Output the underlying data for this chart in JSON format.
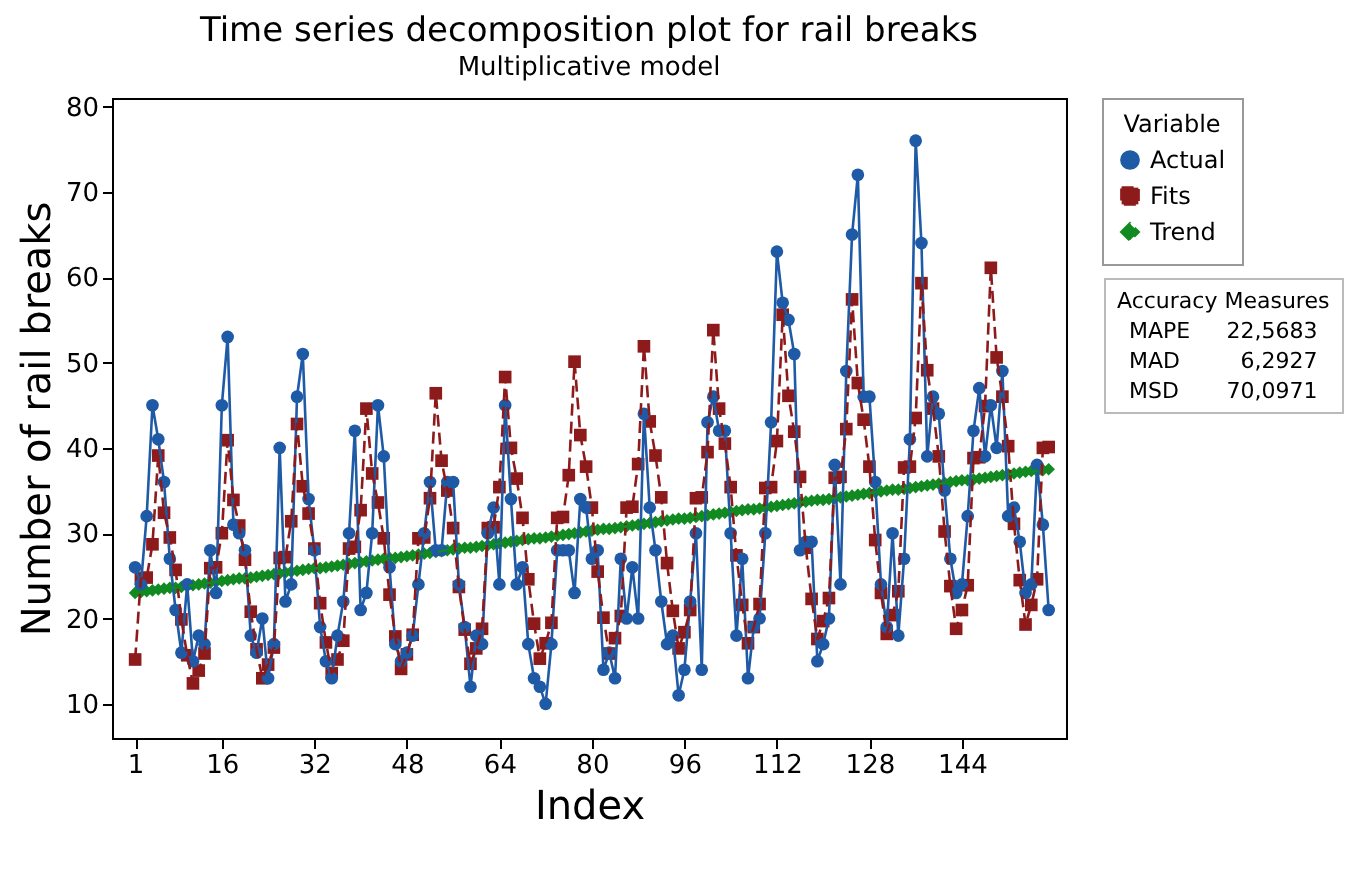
{
  "chart_data": {
    "type": "line",
    "title": "Time series decomposition plot for rail breaks",
    "subtitle": "Multiplicative model",
    "xlabel": "Index",
    "ylabel": "Number of rail breaks",
    "legend_title": "Variable",
    "legend": "right",
    "grid": false,
    "xlim": [
      -3,
      162
    ],
    "xticks": [
      1,
      16,
      32,
      48,
      64,
      80,
      96,
      112,
      128,
      144
    ],
    "ylim": [
      6,
      81
    ],
    "yticks": [
      10,
      20,
      30,
      40,
      50,
      60,
      70,
      80
    ],
    "x": [
      1,
      2,
      3,
      4,
      5,
      6,
      7,
      8,
      9,
      10,
      11,
      12,
      13,
      14,
      15,
      16,
      17,
      18,
      19,
      20,
      21,
      22,
      23,
      24,
      25,
      26,
      27,
      28,
      29,
      30,
      31,
      32,
      33,
      34,
      35,
      36,
      37,
      38,
      39,
      40,
      41,
      42,
      43,
      44,
      45,
      46,
      47,
      48,
      49,
      50,
      51,
      52,
      53,
      54,
      55,
      56,
      57,
      58,
      59,
      60,
      61,
      62,
      63,
      64,
      65,
      66,
      67,
      68,
      69,
      70,
      71,
      72,
      73,
      74,
      75,
      76,
      77,
      78,
      79,
      80,
      81,
      82,
      83,
      84,
      85,
      86,
      87,
      88,
      89,
      90,
      91,
      92,
      93,
      94,
      95,
      96,
      97,
      98,
      99,
      100,
      101,
      102,
      103,
      104,
      105,
      106,
      107,
      108,
      109,
      110,
      111,
      112,
      113,
      114,
      115,
      116,
      117,
      118,
      119,
      120,
      121,
      122,
      123,
      124,
      125,
      126,
      127,
      128,
      129,
      130,
      131,
      132,
      133,
      134,
      135,
      136,
      137,
      138,
      139,
      140,
      141,
      142,
      143,
      144,
      145,
      146,
      147,
      148,
      149,
      150,
      151,
      152,
      153,
      154,
      155,
      156,
      157,
      158,
      159
    ],
    "series": [
      {
        "name": "Actual",
        "color": "#1f5aa6",
        "marker": "circle",
        "line_style": "solid",
        "values": [
          26,
          24,
          32,
          45,
          41,
          36,
          27,
          21,
          16,
          24,
          15,
          18,
          17,
          28,
          23,
          45,
          53,
          31,
          30,
          28,
          18,
          16,
          20,
          13,
          17,
          40,
          22,
          24,
          46,
          51,
          34,
          28,
          19,
          15,
          13,
          18,
          22,
          30,
          42,
          21,
          23,
          30,
          45,
          39,
          26,
          17,
          15,
          16,
          18,
          24,
          30,
          36,
          28,
          28,
          36,
          36,
          24,
          19,
          12,
          18,
          17,
          30,
          33,
          24,
          45,
          34,
          24,
          26,
          17,
          13,
          12,
          10,
          17,
          28,
          28,
          28,
          23,
          34,
          33,
          27,
          28,
          14,
          16,
          13,
          27,
          20,
          26,
          20,
          44,
          33,
          28,
          22,
          17,
          18,
          11,
          14,
          22,
          30,
          14,
          43,
          46,
          42,
          42,
          30,
          18,
          27,
          13,
          19,
          20,
          30,
          43,
          63,
          57,
          55,
          51,
          28,
          29,
          29,
          15,
          17,
          20,
          38,
          24,
          49,
          65,
          72,
          46,
          46,
          36,
          24,
          19,
          30,
          18,
          27,
          41,
          76,
          64,
          39,
          46,
          44,
          35,
          27,
          23,
          24,
          32,
          42,
          47,
          39,
          45,
          40,
          49,
          32,
          33,
          29,
          23,
          24,
          38,
          31,
          21
        ]
      },
      {
        "name": "Fits",
        "color": "#8e1b1b",
        "marker": "square",
        "line_style": "dashed",
        "values": [
          15.2,
          24.7,
          24.8,
          28.7,
          39.1,
          32.4,
          29.5,
          25.7,
          19.9,
          15.7,
          12.4,
          13.9,
          15.9,
          25.9,
          26.0,
          30.0,
          40.9,
          33.9,
          30.9,
          26.9,
          20.8,
          16.4,
          13.0,
          14.6,
          16.6,
          27.1,
          27.2,
          31.4,
          42.8,
          35.5,
          32.3,
          28.2,
          21.8,
          17.2,
          13.6,
          15.2,
          17.4,
          28.2,
          28.4,
          32.7,
          44.6,
          37.0,
          33.6,
          29.4,
          22.8,
          17.9,
          14.1,
          15.8,
          18.1,
          29.4,
          29.5,
          34.1,
          46.4,
          38.5,
          35.0,
          30.6,
          23.7,
          18.7,
          14.7,
          16.5,
          18.8,
          30.6,
          30.7,
          35.4,
          48.3,
          40.0,
          36.4,
          31.8,
          24.6,
          19.4,
          15.3,
          17.1,
          19.5,
          31.8,
          31.9,
          36.8,
          50.1,
          41.5,
          37.8,
          33.0,
          25.5,
          20.1,
          15.9,
          17.7,
          20.3,
          33.0,
          33.1,
          38.1,
          51.9,
          43.1,
          39.1,
          34.2,
          26.5,
          20.9,
          16.5,
          18.4,
          21.0,
          34.1,
          34.2,
          39.5,
          53.8,
          44.6,
          40.5,
          35.4,
          27.4,
          21.6,
          17.1,
          19.0,
          21.7,
          35.3,
          35.4,
          40.8,
          55.6,
          46.1,
          41.9,
          36.6,
          28.3,
          22.3,
          17.6,
          19.7,
          22.4,
          36.5,
          36.6,
          42.2,
          57.4,
          47.6,
          43.3,
          37.8,
          29.2,
          23.0,
          18.2,
          20.4,
          23.2,
          37.7,
          37.8,
          43.5,
          59.3,
          49.1,
          44.6,
          39.0,
          30.2,
          23.8,
          18.8,
          21.0,
          23.9,
          38.8,
          38.9,
          44.9,
          61.1,
          50.6,
          46.0,
          40.2,
          31.1,
          24.5,
          19.3,
          21.6,
          24.6,
          40.0,
          40.1
        ]
      },
      {
        "name": "Trend",
        "color": "#128a22",
        "marker": "diamond",
        "line_style": "dashed",
        "values": [
          23.0,
          23.1,
          23.2,
          23.3,
          23.4,
          23.5,
          23.6,
          23.6,
          23.7,
          23.8,
          23.9,
          24.0,
          24.1,
          24.2,
          24.3,
          24.4,
          24.5,
          24.6,
          24.7,
          24.7,
          24.8,
          24.9,
          25.0,
          25.1,
          25.2,
          25.3,
          25.4,
          25.5,
          25.6,
          25.7,
          25.8,
          25.9,
          25.9,
          26.0,
          26.1,
          26.2,
          26.3,
          26.4,
          26.5,
          26.6,
          26.7,
          26.8,
          26.9,
          27.0,
          27.1,
          27.1,
          27.2,
          27.3,
          27.4,
          27.5,
          27.6,
          27.7,
          27.8,
          27.9,
          28.0,
          28.1,
          28.2,
          28.3,
          28.3,
          28.4,
          28.5,
          28.6,
          28.7,
          28.8,
          28.9,
          29.0,
          29.1,
          29.2,
          29.3,
          29.4,
          29.4,
          29.5,
          29.6,
          29.7,
          29.8,
          29.9,
          30.0,
          30.1,
          30.2,
          30.3,
          30.4,
          30.5,
          30.5,
          30.6,
          30.7,
          30.8,
          30.9,
          31.0,
          31.1,
          31.2,
          31.3,
          31.4,
          31.5,
          31.6,
          31.7,
          31.7,
          31.8,
          31.9,
          32.0,
          32.1,
          32.2,
          32.3,
          32.4,
          32.5,
          32.6,
          32.7,
          32.8,
          32.8,
          32.9,
          33.0,
          33.1,
          33.2,
          33.3,
          33.4,
          33.5,
          33.6,
          33.7,
          33.8,
          33.9,
          33.9,
          34.0,
          34.1,
          34.2,
          34.3,
          34.4,
          34.5,
          34.6,
          34.7,
          34.8,
          34.9,
          35.0,
          35.1,
          35.1,
          35.2,
          35.3,
          35.4,
          35.5,
          35.6,
          35.7,
          35.8,
          35.9,
          36.0,
          36.1,
          36.2,
          36.2,
          36.3,
          36.4,
          36.5,
          36.6,
          36.7,
          36.8,
          36.9,
          37.0,
          37.1,
          37.2,
          37.3,
          37.3,
          37.4,
          37.5
        ]
      }
    ],
    "annotations": [
      "Accuracy Measures",
      "MAPE 22,5683",
      "MAD 6,2927",
      "MSD 70,0971"
    ]
  }
}
